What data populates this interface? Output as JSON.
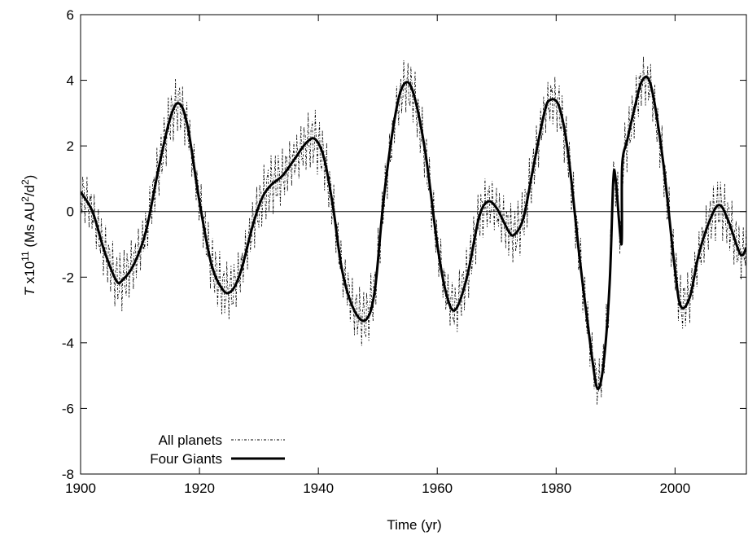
{
  "chart_data": {
    "type": "line",
    "xlabel": "Time (yr)",
    "ylabel": {
      "var": "T",
      "mult": " x10",
      "exp": "11",
      "unit_open": " (Ms AU",
      "unit_exp1": "2",
      "unit_mid": "/d",
      "unit_exp2": "2",
      "unit_close": ")"
    },
    "xlim": [
      1900,
      2012
    ],
    "ylim": [
      -8,
      6
    ],
    "xticks": [
      1900,
      1920,
      1940,
      1960,
      1980,
      2000
    ],
    "yticks": [
      -8,
      -6,
      -4,
      -2,
      0,
      2,
      4,
      6
    ],
    "zero_line": true,
    "grid": false,
    "legend": {
      "position": "bottom-left"
    },
    "series": [
      {
        "name": "All planets",
        "style": "dotted",
        "color": "#000000",
        "description": "high-frequency oscillation around the Four Giants curve"
      },
      {
        "name": "Four Giants",
        "style": "solid",
        "color": "#000000",
        "x": [
          1900,
          1902,
          1904,
          1906,
          1907,
          1909,
          1911,
          1913,
          1915,
          1916.5,
          1918,
          1920,
          1922,
          1924,
          1925.5,
          1927,
          1929,
          1930.5,
          1932,
          1934,
          1936,
          1938,
          1939.5,
          1941,
          1942.5,
          1944,
          1946,
          1948,
          1949.5,
          1951,
          1953,
          1954.5,
          1956,
          1958,
          1960,
          1961.5,
          1963,
          1965,
          1967,
          1968.5,
          1970,
          1972,
          1973,
          1974.5,
          1976,
          1978,
          1979,
          1980.5,
          1982,
          1984,
          1986,
          1987,
          1988,
          1989,
          1989.6,
          1990,
          1991,
          1991.1,
          1992,
          1993,
          1994.5,
          1996,
          1998,
          2000,
          2001,
          2002.5,
          2004,
          2006,
          2007.5,
          2009,
          2011,
          2012
        ],
        "values": [
          0.6,
          0.0,
          -1.2,
          -2.1,
          -2.1,
          -1.6,
          -0.6,
          1.2,
          2.8,
          3.3,
          2.6,
          0.3,
          -1.6,
          -2.4,
          -2.4,
          -1.8,
          -0.4,
          0.4,
          0.8,
          1.1,
          1.6,
          2.1,
          2.2,
          1.6,
          0.1,
          -1.8,
          -3.0,
          -3.3,
          -2.4,
          0.4,
          3.0,
          3.9,
          3.6,
          1.8,
          -1.0,
          -2.5,
          -3.0,
          -2.0,
          -0.2,
          0.3,
          0.1,
          -0.6,
          -0.7,
          -0.2,
          1.2,
          3.0,
          3.4,
          3.2,
          1.8,
          -1.5,
          -4.4,
          -5.4,
          -4.6,
          -2.2,
          0.9,
          1.0,
          -1.0,
          1.4,
          2.2,
          3.0,
          4.0,
          3.8,
          1.5,
          -1.8,
          -2.9,
          -2.6,
          -1.3,
          -0.2,
          0.2,
          -0.3,
          -1.3,
          -1.1
        ]
      }
    ]
  }
}
